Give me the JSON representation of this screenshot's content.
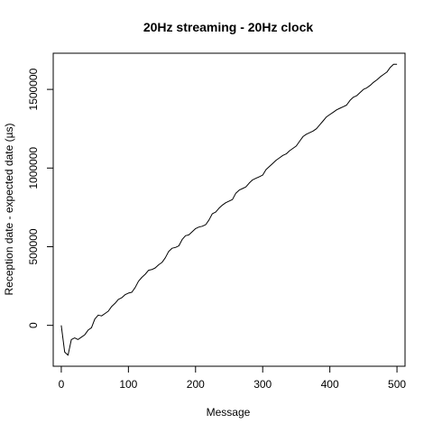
{
  "chart_data": {
    "type": "line",
    "title": "20Hz streaming - 20Hz clock",
    "xlabel": "Message",
    "ylabel": "Reception date - expected date (µs)",
    "xlim": [
      -12,
      512
    ],
    "ylim": [
      -260000,
      1730000
    ],
    "xticks": [
      0,
      100,
      200,
      300,
      400,
      500
    ],
    "yticks": [
      0,
      500000,
      1000000,
      1500000
    ],
    "grid": false,
    "legend": "none",
    "line_color": "#000000",
    "series": [
      {
        "x": [
          0,
          5,
          10,
          15,
          20,
          25,
          30,
          35,
          40,
          45,
          50,
          55,
          60,
          65,
          70,
          75,
          80,
          85,
          90,
          95,
          100,
          105,
          110,
          115,
          120,
          125,
          130,
          135,
          140,
          145,
          150,
          155,
          160,
          165,
          170,
          175,
          180,
          185,
          190,
          195,
          200,
          205,
          210,
          215,
          220,
          225,
          230,
          235,
          240,
          245,
          250,
          255,
          260,
          265,
          270,
          275,
          280,
          285,
          290,
          295,
          300,
          305,
          310,
          315,
          320,
          325,
          330,
          335,
          340,
          345,
          350,
          355,
          360,
          365,
          370,
          375,
          380,
          385,
          390,
          395,
          400,
          405,
          410,
          415,
          420,
          425,
          430,
          435,
          440,
          445,
          450,
          455,
          460,
          465,
          470,
          475,
          480,
          485,
          490,
          495,
          500
        ],
        "y": [
          0,
          -170000,
          -190000,
          -90000,
          -80000,
          -90000,
          -75000,
          -60000,
          -30000,
          -15000,
          40000,
          65000,
          60000,
          75000,
          90000,
          120000,
          140000,
          165000,
          175000,
          195000,
          205000,
          210000,
          240000,
          280000,
          305000,
          325000,
          350000,
          355000,
          365000,
          385000,
          400000,
          430000,
          470000,
          490000,
          495000,
          505000,
          545000,
          570000,
          575000,
          595000,
          615000,
          625000,
          630000,
          640000,
          670000,
          710000,
          720000,
          745000,
          765000,
          780000,
          790000,
          800000,
          840000,
          860000,
          870000,
          880000,
          905000,
          925000,
          935000,
          945000,
          955000,
          990000,
          1010000,
          1030000,
          1050000,
          1065000,
          1080000,
          1090000,
          1110000,
          1125000,
          1140000,
          1170000,
          1200000,
          1215000,
          1225000,
          1235000,
          1250000,
          1275000,
          1300000,
          1325000,
          1340000,
          1355000,
          1370000,
          1380000,
          1390000,
          1400000,
          1430000,
          1450000,
          1460000,
          1480000,
          1500000,
          1510000,
          1525000,
          1545000,
          1560000,
          1580000,
          1595000,
          1610000,
          1640000,
          1660000,
          1660000
        ]
      }
    ]
  }
}
